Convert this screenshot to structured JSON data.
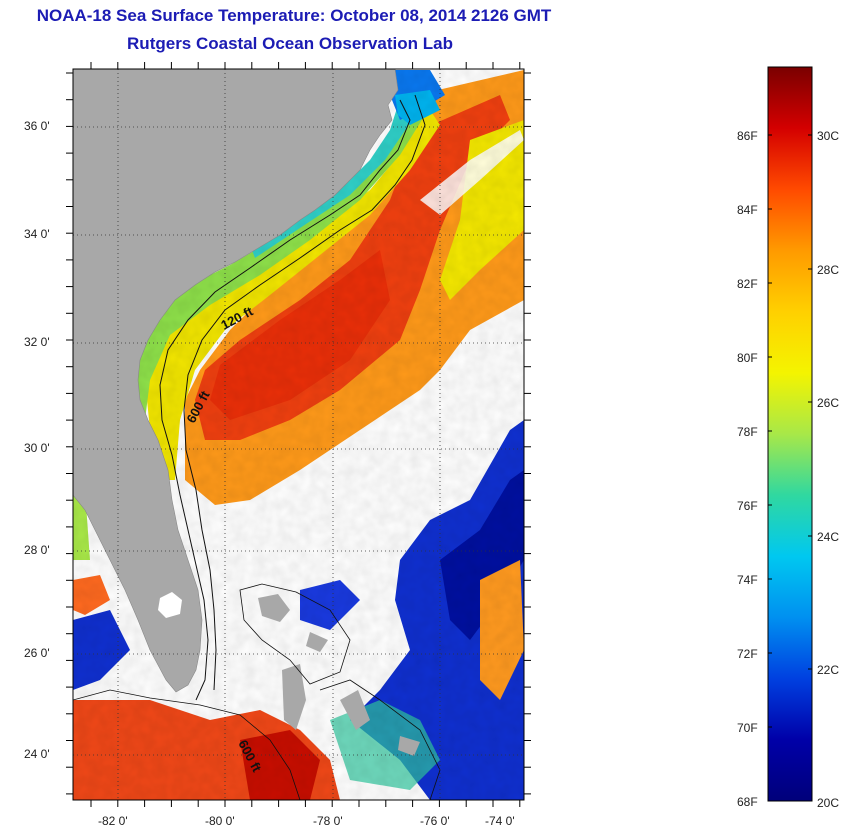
{
  "title": "NOAA-18 Sea Surface Temperature:  October 08, 2014 2126 GMT",
  "subtitle": "Rutgers Coastal Ocean Observation Lab",
  "map": {
    "lat_labels": [
      "36 0'",
      "34 0'",
      "32 0'",
      "30 0'",
      "28 0'",
      "26 0'",
      "24 0'"
    ],
    "lon_labels": [
      "-82 0'",
      "-80 0'",
      "-78 0'",
      "-76 0'",
      "-74 0'"
    ],
    "contour_labels": [
      "120 ft",
      "600 ft",
      "600 ft"
    ],
    "colors": {
      "land": "#a8a8a8",
      "cloud": "#ffffff",
      "frame": "#000000"
    }
  },
  "colorbar": {
    "fahrenheit_labels": [
      "86F",
      "84F",
      "82F",
      "80F",
      "78F",
      "76F",
      "74F",
      "72F",
      "70F",
      "68F"
    ],
    "celsius_labels": [
      "30C",
      "28C",
      "26C",
      "24C",
      "22C",
      "20C"
    ],
    "stops": [
      "#7a0000",
      "#d40000",
      "#ff4a00",
      "#ff9a00",
      "#ffd000",
      "#f4f400",
      "#a8e848",
      "#30d8a0",
      "#00c8f0",
      "#0090f0",
      "#0040e0",
      "#0000a8",
      "#00007a"
    ]
  }
}
